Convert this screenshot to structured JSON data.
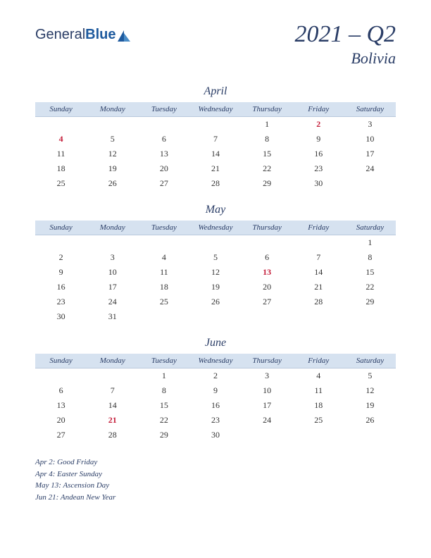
{
  "logo": {
    "part1": "General",
    "part2": "Blue"
  },
  "title": {
    "quarter": "2021 – Q2",
    "country": "Bolivia"
  },
  "dayHeaders": [
    "Sunday",
    "Monday",
    "Tuesday",
    "Wednesday",
    "Thursday",
    "Friday",
    "Saturday"
  ],
  "months": [
    {
      "name": "April",
      "weeks": [
        [
          "",
          "",
          "",
          "",
          "1",
          "2",
          "3"
        ],
        [
          "4",
          "5",
          "6",
          "7",
          "8",
          "9",
          "10"
        ],
        [
          "11",
          "12",
          "13",
          "14",
          "15",
          "16",
          "17"
        ],
        [
          "18",
          "19",
          "20",
          "21",
          "22",
          "23",
          "24"
        ],
        [
          "25",
          "26",
          "27",
          "28",
          "29",
          "30",
          ""
        ]
      ],
      "holidays": [
        "2",
        "4"
      ]
    },
    {
      "name": "May",
      "weeks": [
        [
          "",
          "",
          "",
          "",
          "",
          "",
          "1"
        ],
        [
          "2",
          "3",
          "4",
          "5",
          "6",
          "7",
          "8"
        ],
        [
          "9",
          "10",
          "11",
          "12",
          "13",
          "14",
          "15"
        ],
        [
          "16",
          "17",
          "18",
          "19",
          "20",
          "21",
          "22"
        ],
        [
          "23",
          "24",
          "25",
          "26",
          "27",
          "28",
          "29"
        ],
        [
          "30",
          "31",
          "",
          "",
          "",
          "",
          ""
        ]
      ],
      "holidays": [
        "13"
      ]
    },
    {
      "name": "June",
      "weeks": [
        [
          "",
          "",
          "1",
          "2",
          "3",
          "4",
          "5"
        ],
        [
          "6",
          "7",
          "8",
          "9",
          "10",
          "11",
          "12"
        ],
        [
          "13",
          "14",
          "15",
          "16",
          "17",
          "18",
          "19"
        ],
        [
          "20",
          "21",
          "22",
          "23",
          "24",
          "25",
          "26"
        ],
        [
          "27",
          "28",
          "29",
          "30",
          "",
          "",
          ""
        ]
      ],
      "holidays": [
        "21"
      ]
    }
  ],
  "holidayList": [
    "Apr 2: Good Friday",
    "Apr 4: Easter Sunday",
    "May 13: Ascension Day",
    "Jun 21: Andean New Year"
  ],
  "colors": {
    "headerBg": "#d6e2f0",
    "textPrimary": "#2a3d66",
    "holidayColor": "#c41e3a",
    "dayText": "#333333"
  }
}
